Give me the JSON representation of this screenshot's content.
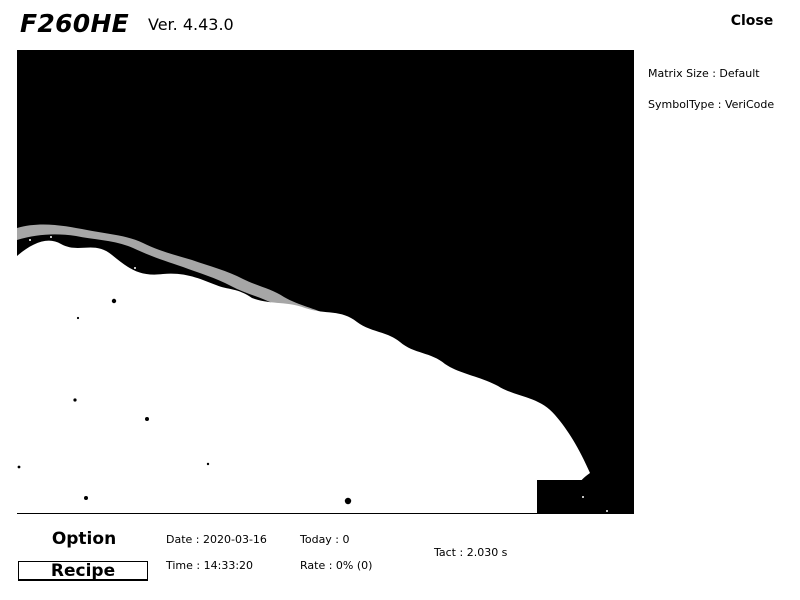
{
  "header": {
    "app_name": "F260HE",
    "version": "Ver. 4.43.0",
    "close_label": "Close"
  },
  "settings": {
    "matrix_size": "Matrix Size : Default",
    "symbol_type": "SymbolType : VeriCode"
  },
  "footer": {
    "option_label": "Option",
    "recipe_label": "Recipe",
    "date": "Date : 2020-03-16",
    "time": "Time : 14:33:20",
    "today": "Today : 0",
    "rate": "Rate : 0% (0)",
    "tact": "Tact : 2.030 s"
  },
  "colors": {
    "background": "#ffffff",
    "foreground": "#000000"
  }
}
